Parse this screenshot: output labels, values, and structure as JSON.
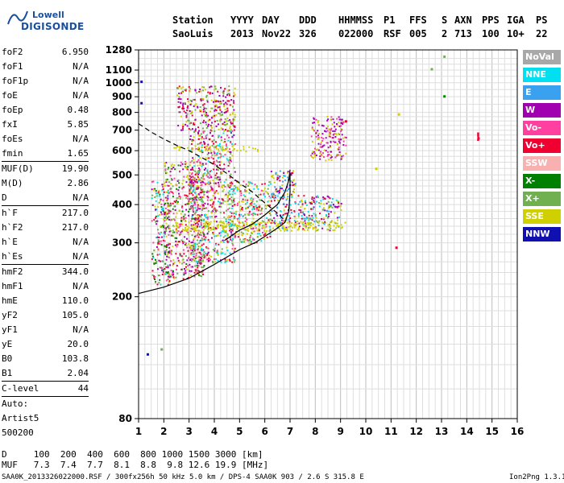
{
  "logo": {
    "line1": "Lowell",
    "line2": "DIGISONDE"
  },
  "header": {
    "row1": [
      "Station",
      "YYYY",
      "DAY",
      "DDD",
      "HHMMSS",
      "P1",
      "FFS",
      "S",
      "AXN",
      "PPS",
      "IGA",
      "PS"
    ],
    "row2": [
      "SaoLuis",
      "2013",
      "Nov22",
      "326",
      "022000",
      "RSF",
      "005",
      "2",
      "713",
      "100",
      "10+",
      "22"
    ]
  },
  "params": {
    "group1": [
      {
        "name": "foF2",
        "value": "6.950"
      },
      {
        "name": "foF1",
        "value": "N/A"
      },
      {
        "name": "foF1p",
        "value": "N/A"
      },
      {
        "name": "foE",
        "value": "N/A"
      },
      {
        "name": "foEp",
        "value": "0.48"
      },
      {
        "name": "fxI",
        "value": "5.85"
      },
      {
        "name": "foEs",
        "value": "N/A"
      },
      {
        "name": "fmin",
        "value": "1.65"
      }
    ],
    "group2": [
      {
        "name": "MUF(D)",
        "value": "19.90"
      },
      {
        "name": "M(D)",
        "value": "2.86"
      },
      {
        "name": "D",
        "value": "N/A"
      }
    ],
    "group3": [
      {
        "name": "h`F",
        "value": "217.0"
      },
      {
        "name": "h`F2",
        "value": "217.0"
      },
      {
        "name": "h`E",
        "value": "N/A"
      },
      {
        "name": "h`Es",
        "value": "N/A"
      }
    ],
    "group4": [
      {
        "name": "hmF2",
        "value": "344.0"
      },
      {
        "name": "hmF1",
        "value": "N/A"
      },
      {
        "name": "hmE",
        "value": "110.0"
      },
      {
        "name": "yF2",
        "value": "105.0"
      },
      {
        "name": "yF1",
        "value": "N/A"
      },
      {
        "name": "yE",
        "value": "20.0"
      },
      {
        "name": "B0",
        "value": "103.8"
      },
      {
        "name": "B1",
        "value": "2.04"
      }
    ],
    "group5": [
      {
        "name": "C-level",
        "value": "44"
      }
    ],
    "autoscaling": [
      "Auto:",
      "Artist5",
      "500200"
    ]
  },
  "legend": [
    {
      "label": "NoVal",
      "color": "#a8a8a8"
    },
    {
      "label": "NNE",
      "color": "#00e0f0"
    },
    {
      "label": "E",
      "color": "#3aa0f0"
    },
    {
      "label": "W",
      "color": "#a000b0"
    },
    {
      "label": "Vo-",
      "color": "#ff40a0"
    },
    {
      "label": "Vo+",
      "color": "#f00030"
    },
    {
      "label": "SSW",
      "color": "#f8b0b0"
    },
    {
      "label": "X-",
      "color": "#008000"
    },
    {
      "label": "X+",
      "color": "#70b050"
    },
    {
      "label": "SSE",
      "color": "#d0d000"
    },
    {
      "label": "NNW",
      "color": "#1010b0"
    }
  ],
  "muf_table": {
    "d_row": "D     100  200  400  600  800 1000 1500 3000 [km]",
    "muf_row": "MUF   7.3  7.4  7.7  8.1  8.8  9.8 12.6 19.9 [MHz]"
  },
  "footer": {
    "left": "SAA0K_2013326022000.RSF / 300fx256h 50 kHz 5.0 km / DPS-4 SAA0K 903 / 2.6 S 315.8 E",
    "right": "Ion2Png 1.3.17"
  },
  "chart_data": {
    "type": "scatter",
    "title": "",
    "xlabel": "",
    "ylabel": "",
    "xlim": [
      1,
      16
    ],
    "ylim": [
      80,
      1280
    ],
    "y_scale": "log",
    "x_ticks": [
      1,
      2,
      3,
      4,
      5,
      6,
      7,
      8,
      9,
      10,
      11,
      12,
      13,
      14,
      15,
      16
    ],
    "y_ticks": [
      80,
      200,
      300,
      400,
      500,
      600,
      700,
      800,
      900,
      1000,
      1100,
      1280
    ],
    "grid": true,
    "echo_clusters": [
      {
        "x_min": 1.5,
        "x_max": 2.2,
        "y_min": 220,
        "y_max": 480,
        "colors": [
          "Vo+",
          "Vo-",
          "W",
          "X-",
          "X+",
          "SSE",
          "NNE"
        ]
      },
      {
        "x_min": 2.0,
        "x_max": 3.6,
        "y_min": 230,
        "y_max": 560,
        "colors": [
          "Vo+",
          "Vo-",
          "W",
          "X-",
          "X+",
          "SSE"
        ]
      },
      {
        "x_min": 3.0,
        "x_max": 4.8,
        "y_min": 260,
        "y_max": 700,
        "colors": [
          "Vo+",
          "Vo-",
          "W",
          "SSE",
          "X+",
          "NNE"
        ]
      },
      {
        "x_min": 4.5,
        "x_max": 6.2,
        "y_min": 300,
        "y_max": 480,
        "colors": [
          "Vo+",
          "Vo-",
          "SSE",
          "X+",
          "NNE"
        ]
      },
      {
        "x_min": 6.2,
        "x_max": 7.2,
        "y_min": 330,
        "y_max": 520,
        "colors": [
          "NNE",
          "E",
          "Vo+",
          "SSE",
          "W"
        ]
      },
      {
        "x_min": 7.3,
        "x_max": 9.0,
        "y_min": 330,
        "y_max": 430,
        "colors": [
          "SSE",
          "NNE",
          "E",
          "Vo+",
          "W",
          "X+"
        ]
      },
      {
        "x_min": 2.3,
        "x_max": 5.8,
        "y_min": 600,
        "y_max": 625,
        "colors": [
          "SSE"
        ]
      },
      {
        "x_min": 2.3,
        "x_max": 9.2,
        "y_min": 330,
        "y_max": 355,
        "colors": [
          "SSE"
        ]
      },
      {
        "x_min": 2.5,
        "x_max": 4.8,
        "y_min": 700,
        "y_max": 980,
        "colors": [
          "SSE",
          "Vo+",
          "W",
          "X+"
        ]
      },
      {
        "x_min": 7.8,
        "x_max": 9.2,
        "y_min": 560,
        "y_max": 780,
        "colors": [
          "W",
          "Vo-",
          "SSE"
        ]
      }
    ],
    "isolated_points": [
      {
        "x": 1.1,
        "y": 1010,
        "color": "NNW"
      },
      {
        "x": 1.1,
        "y": 860,
        "color": "NNW"
      },
      {
        "x": 1.35,
        "y": 130,
        "color": "NNW"
      },
      {
        "x": 1.9,
        "y": 135,
        "color": "X+"
      },
      {
        "x": 11.2,
        "y": 290,
        "color": "Vo+"
      },
      {
        "x": 11.3,
        "y": 790,
        "color": "SSE"
      },
      {
        "x": 12.6,
        "y": 1110,
        "color": "X+"
      },
      {
        "x": 13.1,
        "y": 905,
        "color": "X-"
      },
      {
        "x": 13.1,
        "y": 1220,
        "color": "X+"
      },
      {
        "x": 10.4,
        "y": 525,
        "color": "SSE"
      },
      {
        "x": 9.2,
        "y": 750,
        "color": "Vo+"
      },
      {
        "x": 14.45,
        "y": 660,
        "color": "Vo+"
      }
    ],
    "profile_curve": {
      "style": "solid",
      "points": [
        [
          1.0,
          205
        ],
        [
          2.0,
          215
        ],
        [
          3.0,
          230
        ],
        [
          4.0,
          255
        ],
        [
          5.0,
          285
        ],
        [
          5.6,
          300
        ],
        [
          6.0,
          315
        ],
        [
          6.5,
          335
        ],
        [
          6.8,
          350
        ],
        [
          6.95,
          380
        ],
        [
          7.0,
          440
        ],
        [
          7.0,
          505
        ]
      ]
    },
    "virtual_trace": {
      "style": "solid",
      "points": [
        [
          4.4,
          305
        ],
        [
          5.0,
          330
        ],
        [
          5.5,
          345
        ],
        [
          6.0,
          370
        ],
        [
          6.5,
          400
        ],
        [
          6.8,
          440
        ],
        [
          6.95,
          480
        ],
        [
          7.0,
          520
        ]
      ]
    },
    "dashed_curve": {
      "style": "dashed",
      "points": [
        [
          1.0,
          735
        ],
        [
          1.5,
          690
        ],
        [
          2.0,
          655
        ],
        [
          2.5,
          625
        ],
        [
          3.0,
          600
        ],
        [
          3.5,
          570
        ],
        [
          4.0,
          540
        ],
        [
          4.5,
          505
        ],
        [
          5.0,
          470
        ],
        [
          5.5,
          440
        ],
        [
          6.0,
          405
        ],
        [
          6.5,
          375
        ],
        [
          6.8,
          355
        ]
      ]
    },
    "marker": {
      "x": 14.45,
      "y": 670,
      "label": "!",
      "color": "Vo+"
    }
  }
}
